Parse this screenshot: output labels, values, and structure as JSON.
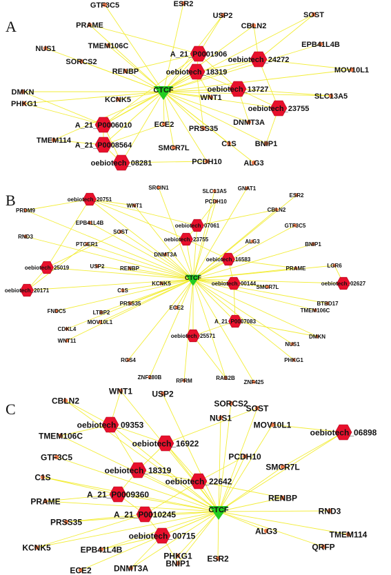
{
  "colors": {
    "edge": "#f2ec2c",
    "hub": "#e8102c",
    "gene": "#ec7b4c",
    "tf": "#22cc22"
  },
  "panels": [
    {
      "letter": "A",
      "hub": "CTCF",
      "nodes": [
        {
          "label": "GTF3C5",
          "type": "gene",
          "fs": 11
        },
        {
          "label": "ESR2",
          "type": "gene",
          "fs": 11
        },
        {
          "label": "USP2",
          "type": "gene",
          "fs": 11
        },
        {
          "label": "SOST",
          "type": "gene",
          "fs": 11
        },
        {
          "label": "PRAME",
          "type": "gene",
          "fs": 11
        },
        {
          "label": "CBLN2",
          "type": "gene",
          "fs": 11
        },
        {
          "label": "NUS1",
          "type": "gene",
          "fs": 11
        },
        {
          "label": "TMEM106C",
          "type": "gene",
          "fs": 11
        },
        {
          "label": "EPB41L4B",
          "type": "gene",
          "fs": 11
        },
        {
          "label": "SORCS2",
          "type": "gene",
          "fs": 11
        },
        {
          "label": "A_21_P0001906",
          "type": "lnc",
          "fs": 11
        },
        {
          "label": "oebiotech_24272",
          "type": "lnc",
          "fs": 11
        },
        {
          "label": "MOV10L1",
          "type": "gene",
          "fs": 11
        },
        {
          "label": "RENBP",
          "type": "gene",
          "fs": 11
        },
        {
          "label": "oebiotech_18319",
          "type": "lnc",
          "fs": 11
        },
        {
          "label": "DMKN",
          "type": "gene",
          "fs": 11
        },
        {
          "label": "oebiotech_13727",
          "type": "lnc",
          "fs": 11
        },
        {
          "label": "KCNK5",
          "type": "gene",
          "fs": 11
        },
        {
          "label": "WNT1",
          "type": "gene",
          "fs": 11
        },
        {
          "label": "SLC13A5",
          "type": "gene",
          "fs": 11
        },
        {
          "label": "PHKG1",
          "type": "gene",
          "fs": 11
        },
        {
          "label": "oebiotech_23755",
          "type": "lnc",
          "fs": 11
        },
        {
          "label": "A_21_P0006010",
          "type": "lnc",
          "fs": 11
        },
        {
          "label": "ECE2",
          "type": "gene",
          "fs": 11
        },
        {
          "label": "DNMT3A",
          "type": "gene",
          "fs": 11
        },
        {
          "label": "PRSS35",
          "type": "gene",
          "fs": 11
        },
        {
          "label": "TMEM114",
          "type": "gene",
          "fs": 11
        },
        {
          "label": "A_21_P0008564",
          "type": "lnc",
          "fs": 11
        },
        {
          "label": "C1S",
          "type": "gene",
          "fs": 11
        },
        {
          "label": "BNIP1",
          "type": "gene",
          "fs": 11
        },
        {
          "label": "SMCR7L",
          "type": "gene",
          "fs": 11
        },
        {
          "label": "oebiotech_08281",
          "type": "lnc",
          "fs": 11
        },
        {
          "label": "PCDH10",
          "type": "gene",
          "fs": 11
        },
        {
          "label": "ALG3",
          "type": "gene",
          "fs": 11
        }
      ]
    },
    {
      "letter": "B",
      "hub": "CTCF",
      "nodes": [
        {
          "label": "SRCIN1",
          "type": "gene",
          "fs": 8
        },
        {
          "label": "GNAT1",
          "type": "gene",
          "fs": 8
        },
        {
          "label": "SLC13A5",
          "type": "gene",
          "fs": 8
        },
        {
          "label": "ESR2",
          "type": "gene",
          "fs": 8
        },
        {
          "label": "oebiotech_20751",
          "type": "lnc",
          "fs": 8
        },
        {
          "label": "PCDH10",
          "type": "gene",
          "fs": 8
        },
        {
          "label": "PRDM9",
          "type": "gene",
          "fs": 8
        },
        {
          "label": "WNT1",
          "type": "gene",
          "fs": 8
        },
        {
          "label": "CBLN2",
          "type": "gene",
          "fs": 8
        },
        {
          "label": "EPB41L4B",
          "type": "gene",
          "fs": 8
        },
        {
          "label": "oebiotech_07061",
          "type": "lnc",
          "fs": 8
        },
        {
          "label": "GTF3C5",
          "type": "gene",
          "fs": 8
        },
        {
          "label": "SOST",
          "type": "gene",
          "fs": 8
        },
        {
          "label": "RND3",
          "type": "gene",
          "fs": 8
        },
        {
          "label": "oebiotech_23755",
          "type": "lnc",
          "fs": 8
        },
        {
          "label": "ALG3",
          "type": "gene",
          "fs": 8
        },
        {
          "label": "BNIP1",
          "type": "gene",
          "fs": 8
        },
        {
          "label": "PTGER1",
          "type": "gene",
          "fs": 8
        },
        {
          "label": "DNMT3A",
          "type": "gene",
          "fs": 8
        },
        {
          "label": "oebiotech_16583",
          "type": "lnc",
          "fs": 8
        },
        {
          "label": "PRAME",
          "type": "gene",
          "fs": 8
        },
        {
          "label": "LGR6",
          "type": "gene",
          "fs": 8
        },
        {
          "label": "oebiotech_25019",
          "type": "lnc",
          "fs": 8
        },
        {
          "label": "USP2",
          "type": "gene",
          "fs": 8
        },
        {
          "label": "RENBP",
          "type": "gene",
          "fs": 8
        },
        {
          "label": "KCNK5",
          "type": "gene",
          "fs": 8
        },
        {
          "label": "oebiotech_00144",
          "type": "lnc",
          "fs": 8
        },
        {
          "label": "SMCR7L",
          "type": "gene",
          "fs": 8
        },
        {
          "label": "oebiotech_02627",
          "type": "lnc",
          "fs": 8
        },
        {
          "label": "oebiotech_20171",
          "type": "lnc",
          "fs": 8
        },
        {
          "label": "C1S",
          "type": "gene",
          "fs": 8
        },
        {
          "label": "BTBD17",
          "type": "gene",
          "fs": 8
        },
        {
          "label": "FNDC5",
          "type": "gene",
          "fs": 8
        },
        {
          "label": "LTBP2",
          "type": "gene",
          "fs": 8
        },
        {
          "label": "PRSS35",
          "type": "gene",
          "fs": 8
        },
        {
          "label": "ECE2",
          "type": "gene",
          "fs": 8
        },
        {
          "label": "TMEM106C",
          "type": "gene",
          "fs": 8
        },
        {
          "label": "CDKL4",
          "type": "gene",
          "fs": 8
        },
        {
          "label": "MOV10L1",
          "type": "gene",
          "fs": 8
        },
        {
          "label": "A_21_P0007083",
          "type": "lnc",
          "fs": 8
        },
        {
          "label": "DMKN",
          "type": "gene",
          "fs": 8
        },
        {
          "label": "WNT11",
          "type": "gene",
          "fs": 8
        },
        {
          "label": "oebiotech_25571",
          "type": "lnc",
          "fs": 8
        },
        {
          "label": "NUS1",
          "type": "gene",
          "fs": 8
        },
        {
          "label": "RGS4",
          "type": "gene",
          "fs": 8
        },
        {
          "label": "ZNF280B",
          "type": "gene",
          "fs": 8
        },
        {
          "label": "RPRM",
          "type": "gene",
          "fs": 8
        },
        {
          "label": "RAB2B",
          "type": "gene",
          "fs": 8
        },
        {
          "label": "ZNF425",
          "type": "gene",
          "fs": 8
        },
        {
          "label": "PHKG1",
          "type": "gene",
          "fs": 8
        }
      ]
    },
    {
      "letter": "C",
      "hub": "CTCF",
      "nodes": [
        {
          "label": "WNT1",
          "type": "gene",
          "fs": 12
        },
        {
          "label": "USP2",
          "type": "gene",
          "fs": 12
        },
        {
          "label": "CBLN2",
          "type": "gene",
          "fs": 12
        },
        {
          "label": "SORCS2",
          "type": "gene",
          "fs": 12
        },
        {
          "label": "SOST",
          "type": "gene",
          "fs": 12
        },
        {
          "label": "NUS1",
          "type": "gene",
          "fs": 12
        },
        {
          "label": "oebiotech_09353",
          "type": "lnc",
          "fs": 12
        },
        {
          "label": "MOV10L1",
          "type": "gene",
          "fs": 12
        },
        {
          "label": "oebiotech_06898",
          "type": "lnc",
          "fs": 12
        },
        {
          "label": "TMEM106C",
          "type": "gene",
          "fs": 12
        },
        {
          "label": "oebiotech_16922",
          "type": "lnc",
          "fs": 12
        },
        {
          "label": "GTF3C5",
          "type": "gene",
          "fs": 12
        },
        {
          "label": "PCDH10",
          "type": "gene",
          "fs": 12
        },
        {
          "label": "SMCR7L",
          "type": "gene",
          "fs": 12
        },
        {
          "label": "oebiotech_18319",
          "type": "lnc",
          "fs": 12
        },
        {
          "label": "C1S",
          "type": "gene",
          "fs": 12
        },
        {
          "label": "oebiotech_22642",
          "type": "lnc",
          "fs": 12
        },
        {
          "label": "A_21_P0009360",
          "type": "lnc",
          "fs": 12
        },
        {
          "label": "PRAME",
          "type": "gene",
          "fs": 12
        },
        {
          "label": "RENBP",
          "type": "gene",
          "fs": 12
        },
        {
          "label": "A_21_P0010245",
          "type": "lnc",
          "fs": 12
        },
        {
          "label": "RND3",
          "type": "gene",
          "fs": 12
        },
        {
          "label": "PRSS35",
          "type": "gene",
          "fs": 12
        },
        {
          "label": "ALG3",
          "type": "gene",
          "fs": 12
        },
        {
          "label": "oebiotech_00715",
          "type": "lnc",
          "fs": 12
        },
        {
          "label": "TMEM114",
          "type": "gene",
          "fs": 12
        },
        {
          "label": "KCNK5",
          "type": "gene",
          "fs": 12
        },
        {
          "label": "EPB41L4B",
          "type": "gene",
          "fs": 12
        },
        {
          "label": "QRFP",
          "type": "gene",
          "fs": 12
        },
        {
          "label": "PHKG1",
          "type": "gene",
          "fs": 12
        },
        {
          "label": "ESR2",
          "type": "gene",
          "fs": 12
        },
        {
          "label": "BNIP1",
          "type": "gene",
          "fs": 12
        },
        {
          "label": "ECE2",
          "type": "gene",
          "fs": 12
        },
        {
          "label": "DNMT3A",
          "type": "gene",
          "fs": 12
        }
      ]
    }
  ]
}
